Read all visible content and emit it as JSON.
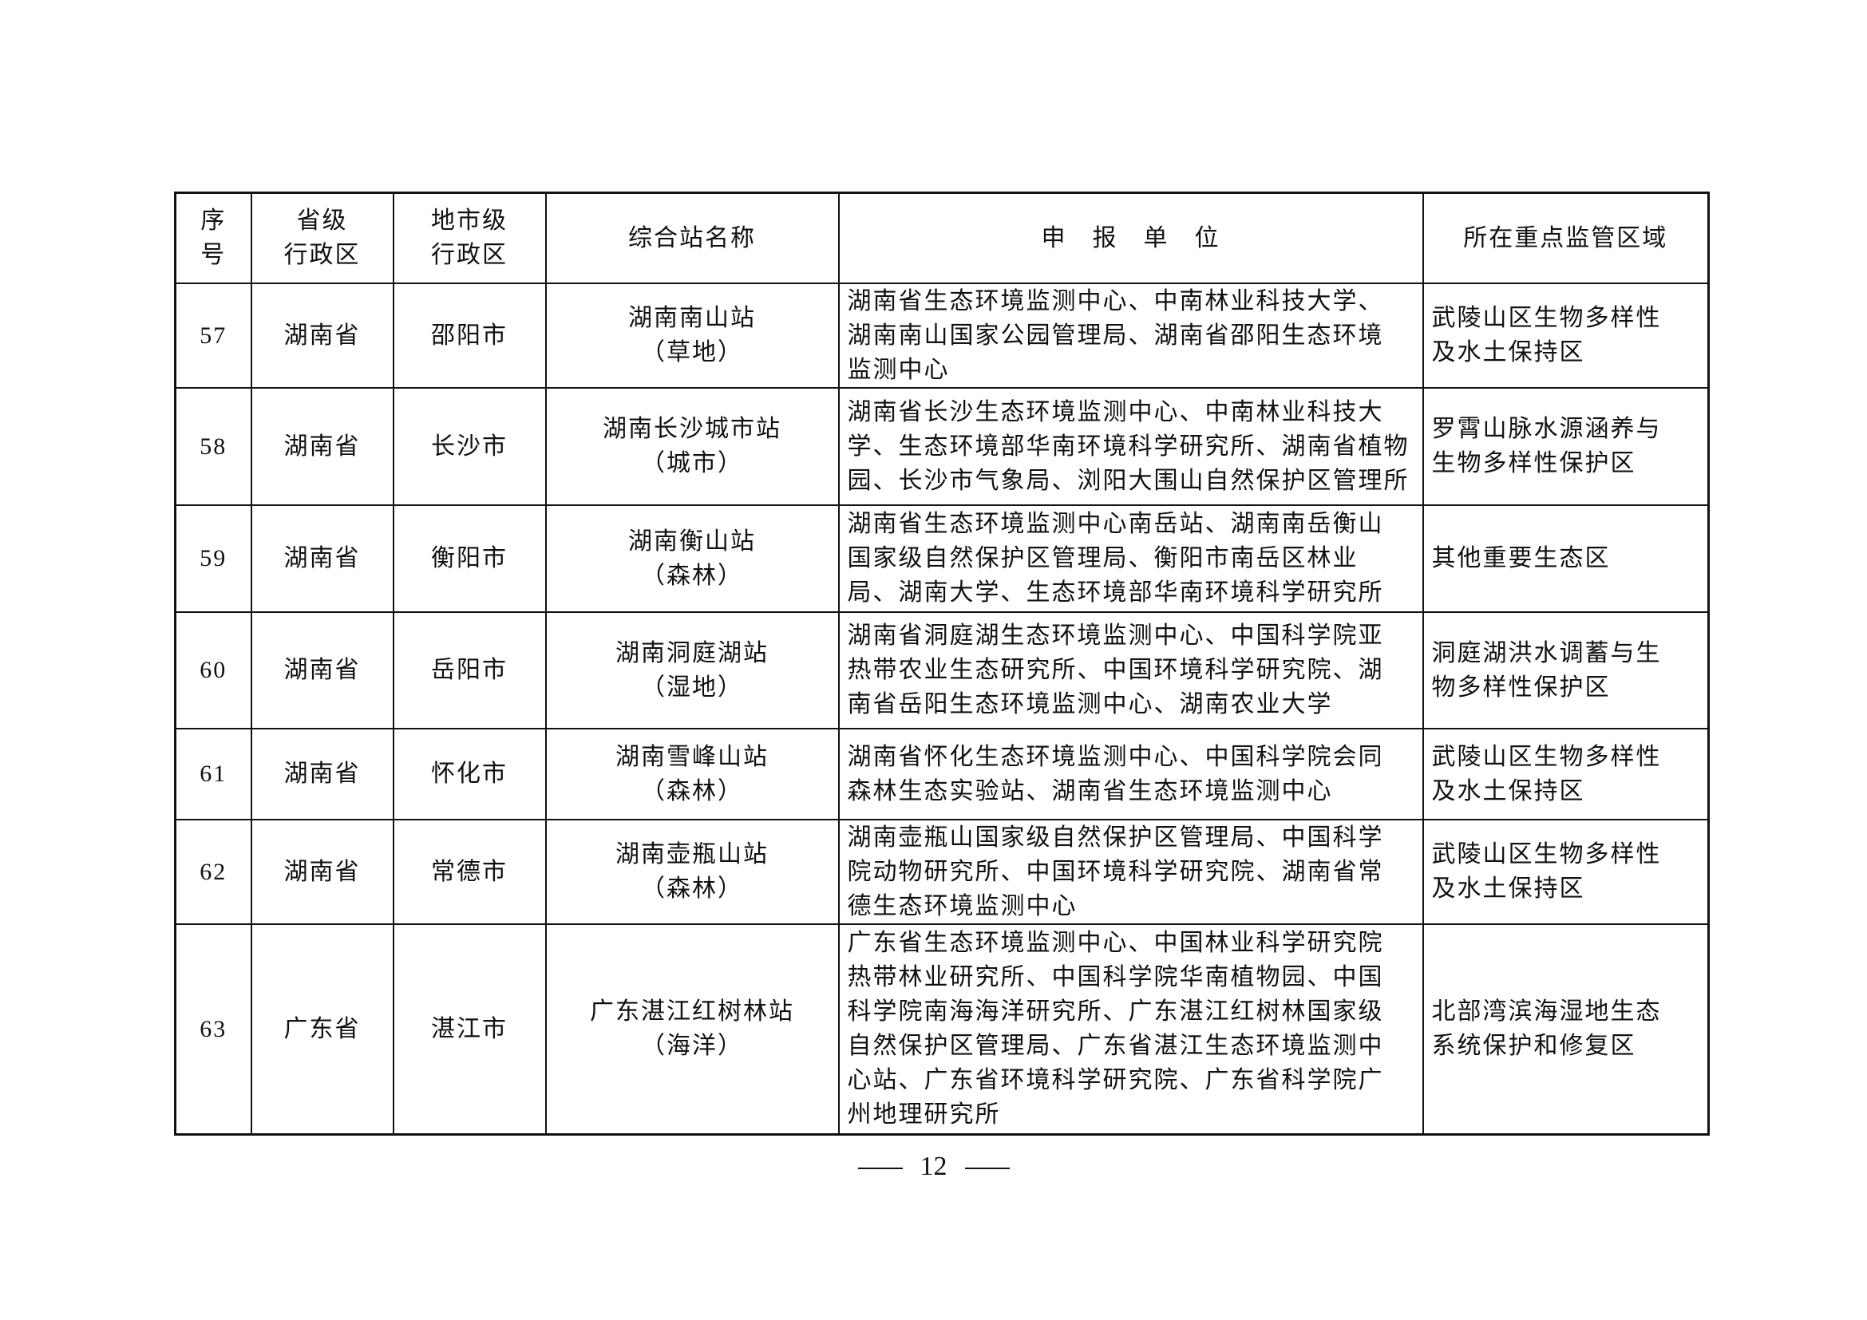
{
  "table": {
    "headers": [
      "序\n号",
      "省级\n行政区",
      "地市级\n行政区",
      "综合站名称",
      "申　报　单　位",
      "所在重点监管区域"
    ],
    "rows": [
      {
        "no": "57",
        "province": "湖南省",
        "city": "邵阳市",
        "station": "湖南南山站\n（草地）",
        "units": "湖南省生态环境监测中心、中南林业科技大学、\n湖南南山国家公园管理局、湖南省邵阳生态环境\n监测中心",
        "region": "武陵山区生物多样性\n及水土保持区"
      },
      {
        "no": "58",
        "province": "湖南省",
        "city": "长沙市",
        "station": "湖南长沙城市站\n（城市）",
        "units": "湖南省长沙生态环境监测中心、中南林业科技大\n学、生态环境部华南环境科学研究所、湖南省植物\n园、长沙市气象局、浏阳大围山自然保护区管理所",
        "region": "罗霄山脉水源涵养与\n生物多样性保护区"
      },
      {
        "no": "59",
        "province": "湖南省",
        "city": "衡阳市",
        "station": "湖南衡山站\n（森林）",
        "units": "湖南省生态环境监测中心南岳站、湖南南岳衡山\n国家级自然保护区管理局、衡阳市南岳区林业\n局、湖南大学、生态环境部华南环境科学研究所",
        "region": "其他重要生态区"
      },
      {
        "no": "60",
        "province": "湖南省",
        "city": "岳阳市",
        "station": "湖南洞庭湖站\n（湿地）",
        "units": "湖南省洞庭湖生态环境监测中心、中国科学院亚\n热带农业生态研究所、中国环境科学研究院、湖\n南省岳阳生态环境监测中心、湖南农业大学",
        "region": "洞庭湖洪水调蓄与生\n物多样性保护区"
      },
      {
        "no": "61",
        "province": "湖南省",
        "city": "怀化市",
        "station": "湖南雪峰山站\n（森林）",
        "units": "湖南省怀化生态环境监测中心、中国科学院会同\n森林生态实验站、湖南省生态环境监测中心",
        "region": "武陵山区生物多样性\n及水土保持区"
      },
      {
        "no": "62",
        "province": "湖南省",
        "city": "常德市",
        "station": "湖南壶瓶山站\n（森林）",
        "units": "湖南壶瓶山国家级自然保护区管理局、中国科学\n院动物研究所、中国环境科学研究院、湖南省常\n德生态环境监测中心",
        "region": "武陵山区生物多样性\n及水土保持区"
      },
      {
        "no": "63",
        "province": "广东省",
        "city": "湛江市",
        "station": "广东湛江红树林站\n（海洋）",
        "units": "广东省生态环境监测中心、中国林业科学研究院\n热带林业研究所、中国科学院华南植物园、中国\n科学院南海海洋研究所、广东湛江红树林国家级\n自然保护区管理局、广东省湛江生态环境监测中\n心站、广东省环境科学研究院、广东省科学院广\n州地理研究所",
        "region": "北部湾滨海湿地生态\n系统保护和修复区"
      }
    ]
  },
  "page_number": "12"
}
